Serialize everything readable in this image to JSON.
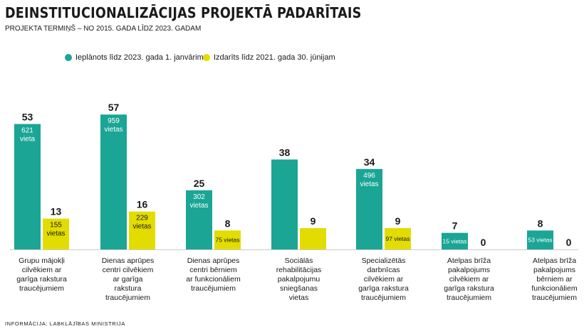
{
  "title": "DEINSTITUCIONALIZĀCIJAS PROJEKTĀ PADARĪTAIS",
  "subtitle": "PROJEKTA TERMIŅŠ – NO 2015. GADA LĪDZ 2023. GADAM",
  "source": "INFORMĀCIJA: LABKLĀJĪBAS MINISTRIJA",
  "colors": {
    "planned": "#1aa595",
    "done": "#e2dc00"
  },
  "legend": [
    {
      "label": "Ieplānots līdz 2023. gada 1. janvārim",
      "color": "#1aa595"
    },
    {
      "label": "Izdarīts līdz 2021. gada 30. jūnijam",
      "color": "#e2dc00"
    }
  ],
  "chart_data": {
    "type": "bar",
    "title": "DEINSTITUCIONALIZĀCIJAS PROJEKTĀ PADARĪTAIS",
    "categories": [
      "Grupu mājokļi cilvēkiem ar garīga rakstura traucējumiem",
      "Dienas aprūpes centri cilvēkiem ar garīga rakstura traucējumiem",
      "Dienas aprūpes centri bērniem ar funkcionāliem traucējumiem",
      "Sociālās rehabilitācijas pakalpojumu sniegšanas vietas",
      "Specializētās darbnīcas cilvēkiem ar garīga rakstura traucējumiem",
      "Atelpas brīža pakalpojums cilvēkiem ar garīga rakstura traucējumiem",
      "Atelpas brīža pakalpojums bērniem ar funkcionāliem traucējumiem"
    ],
    "category_lines": [
      [
        "Grupu mājokļi",
        "cilvēkiem ar",
        "garīga rakstura",
        "traucējumiem"
      ],
      [
        "Dienas aprūpes",
        "centri cilvēkiem",
        "ar garīga",
        "rakstura",
        "traucējumiem"
      ],
      [
        "Dienas aprūpes",
        "centri bērniem",
        "ar funkcionāliem",
        "traucējumiem"
      ],
      [
        "Sociālās",
        "rehabilitācijas",
        "pakalpojumu",
        "sniegšanas",
        "vietas"
      ],
      [
        "Specializētās",
        "darbnīcas",
        "cilvēkiem ar",
        "garīga rakstura",
        "traucējumiem"
      ],
      [
        "Atelpas brīža",
        "pakalpojums",
        "cilvēkiem ar",
        "garīga rakstura",
        "traucējumiem"
      ],
      [
        "Atelpas brīža",
        "pakalpojums",
        "bērniem ar",
        "funkcionāliem",
        "traucējumiem"
      ]
    ],
    "series": [
      {
        "name": "Ieplānots līdz 2023. gada 1. janvārim",
        "values": [
          53,
          57,
          25,
          38,
          34,
          7,
          8
        ],
        "inner_labels": [
          "621 vieta",
          "959 vietas",
          "302 vietas",
          "",
          "496 vietas",
          "15 vietas",
          "53 vietas"
        ]
      },
      {
        "name": "Izdarīts līdz 2021. gada 30. jūnijam",
        "values": [
          13,
          16,
          8,
          9,
          9,
          0,
          0
        ],
        "inner_labels": [
          "155 vietas",
          "229 vietas",
          "75 vietas",
          "",
          "97 vietas",
          "",
          ""
        ]
      }
    ],
    "ylim": [
      0,
      57
    ],
    "xlabel": "",
    "ylabel": "",
    "grid": false,
    "legend_position": "top"
  }
}
